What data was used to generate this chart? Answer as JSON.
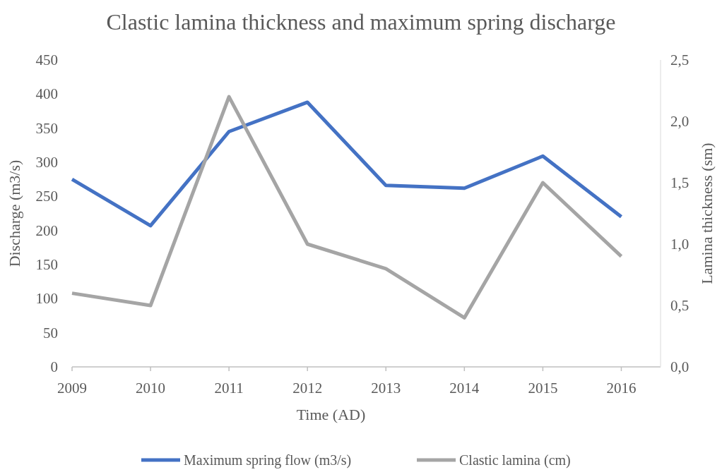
{
  "chart_data": {
    "type": "line",
    "title": "Clastic lamina thickness and maximum spring discharge",
    "xlabel": "Time (AD)",
    "ylabel": "Discharge (m3/s)",
    "y2label": "Lamina thickness (sm)",
    "x": [
      2009,
      2010,
      2011,
      2012,
      2013,
      2014,
      2015,
      2016
    ],
    "xlim": [
      2009,
      2016.5
    ],
    "xticks": [
      2009,
      2010,
      2011,
      2012,
      2013,
      2014,
      2015,
      2016
    ],
    "ylim": [
      0,
      450
    ],
    "yticks": [
      0,
      50,
      100,
      150,
      200,
      250,
      300,
      350,
      400,
      450
    ],
    "y2lim": [
      0,
      2.5
    ],
    "y2ticks": [
      {
        "value": 0,
        "label": "0,0"
      },
      {
        "value": 0.5,
        "label": "0,5"
      },
      {
        "value": 1,
        "label": "1,0"
      },
      {
        "value": 1.5,
        "label": "1,5"
      },
      {
        "value": 2,
        "label": "2,0"
      },
      {
        "value": 2.5,
        "label": "2,5"
      }
    ],
    "series": [
      {
        "name": "Maximum spring flow (m3/s)",
        "color": "#4472c4",
        "values": [
          275,
          207,
          345,
          388,
          266,
          262,
          309,
          220
        ]
      },
      {
        "name": "Clastic lamina (cm)",
        "color": "#a5a5a5",
        "axis": "y2",
        "values": [
          0.6,
          0.5,
          2.2,
          1.0,
          0.8,
          0.4,
          1.5,
          0.9
        ]
      }
    ],
    "legend": "bottom",
    "marker": "none",
    "line_style": "solid",
    "grid": false
  }
}
